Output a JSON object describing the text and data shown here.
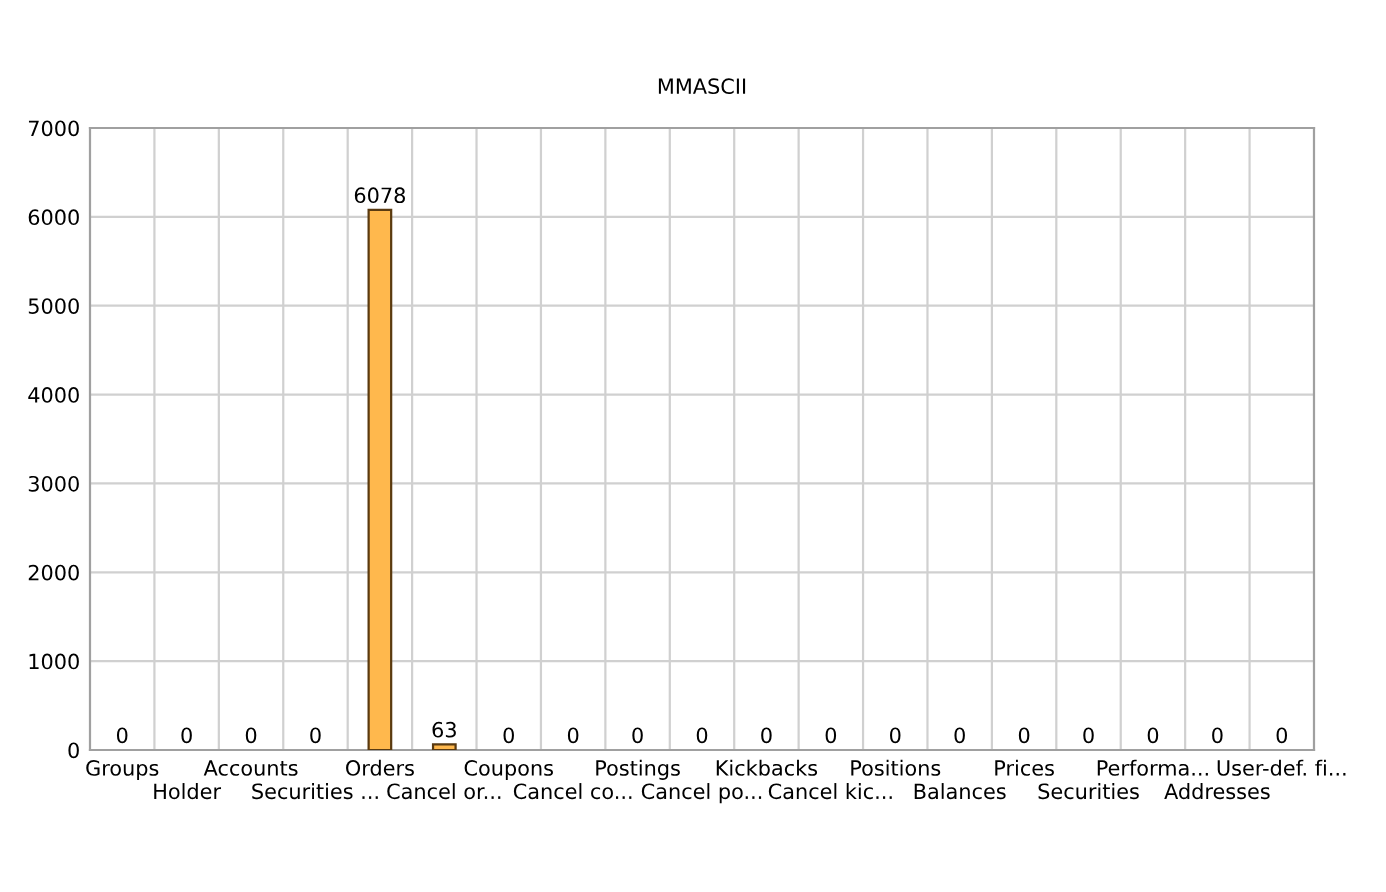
{
  "chart_data": {
    "type": "bar",
    "title": "MMASCII",
    "categories": [
      "Groups",
      "Holder",
      "Accounts",
      "Securities ...",
      "Orders",
      "Cancel or...",
      "Coupons",
      "Cancel co...",
      "Postings",
      "Cancel po...",
      "Kickbacks",
      "Cancel kic...",
      "Positions",
      "Balances",
      "Prices",
      "Securities",
      "Performa...",
      "Addresses",
      "User-def. fi..."
    ],
    "values": [
      0,
      0,
      0,
      0,
      6078,
      63,
      0,
      0,
      0,
      0,
      0,
      0,
      0,
      0,
      0,
      0,
      0,
      0,
      0
    ],
    "color": "#ffb84d",
    "ylim": [
      0,
      7000
    ],
    "yticks": [
      0,
      1000,
      2000,
      3000,
      4000,
      5000,
      6000,
      7000
    ],
    "grid": true,
    "data_labels": true
  }
}
